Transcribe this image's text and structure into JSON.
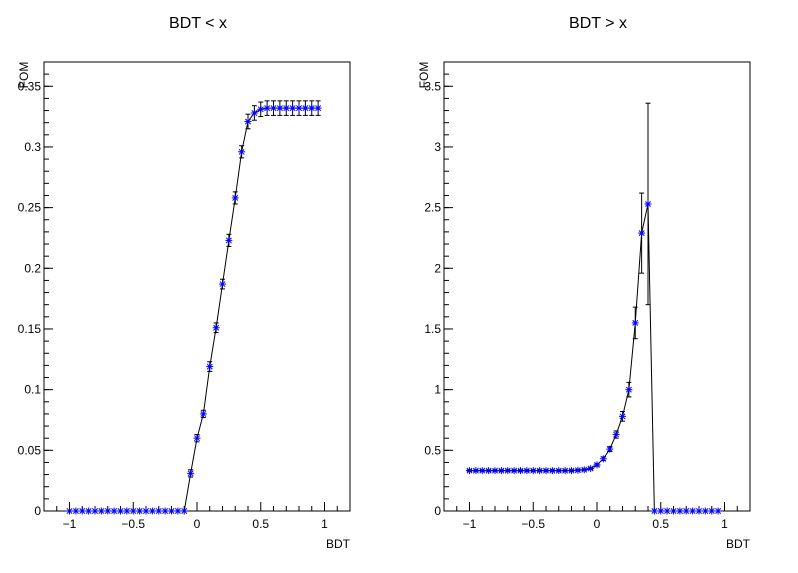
{
  "chart_data": [
    {
      "type": "scatter",
      "title": "BDT < x",
      "xlabel": "BDT",
      "ylabel": "FOM",
      "xlim": [
        -1.2,
        1.2
      ],
      "ylim": [
        0,
        0.37
      ],
      "x_ticks": [
        -1,
        -0.5,
        0,
        0.5,
        1
      ],
      "x_tick_labels": [
        "−1",
        "−0.5",
        "0",
        "0.5",
        "1"
      ],
      "y_ticks": [
        0,
        0.05,
        0.1,
        0.15,
        0.2,
        0.25,
        0.3,
        0.35
      ],
      "y_tick_labels": [
        "0",
        "0.05",
        "0.1",
        "0.15",
        "0.2",
        "0.25",
        "0.3",
        "0.35"
      ],
      "grid": false,
      "marker_color": "#0000ff",
      "line_color": "#000000",
      "series": [
        {
          "x": [
            -1,
            -0.95,
            -0.9,
            -0.85,
            -0.8,
            -0.75,
            -0.7,
            -0.65,
            -0.6,
            -0.55,
            -0.5,
            -0.45,
            -0.4,
            -0.35,
            -0.3,
            -0.25,
            -0.2,
            -0.15,
            -0.1,
            -0.05,
            0,
            0.05,
            0.1,
            0.15,
            0.2,
            0.25,
            0.3,
            0.35,
            0.4,
            0.45,
            0.5,
            0.55,
            0.6,
            0.65,
            0.7,
            0.75,
            0.8,
            0.85,
            0.9,
            0.95
          ],
          "y": [
            0,
            0,
            0,
            0,
            0,
            0,
            0,
            0,
            0,
            0,
            0,
            0,
            0,
            0,
            0,
            0,
            0,
            0,
            0,
            0.031,
            0.06,
            0.08,
            0.119,
            0.151,
            0.187,
            0.223,
            0.258,
            0.296,
            0.321,
            0.328,
            0.331,
            0.332,
            0.332,
            0.332,
            0.332,
            0.332,
            0.332,
            0.332,
            0.332,
            0.332
          ],
          "yerr": [
            0,
            0,
            0,
            0,
            0,
            0,
            0,
            0,
            0,
            0,
            0,
            0,
            0,
            0,
            0,
            0,
            0,
            0,
            0,
            0.003,
            0.003,
            0.003,
            0.004,
            0.004,
            0.004,
            0.005,
            0.005,
            0.005,
            0.006,
            0.006,
            0.006,
            0.006,
            0.006,
            0.006,
            0.006,
            0.006,
            0.006,
            0.006,
            0.006,
            0.006
          ]
        }
      ]
    },
    {
      "type": "scatter",
      "title": "BDT > x",
      "xlabel": "BDT",
      "ylabel": "FOM",
      "xlim": [
        -1.2,
        1.2
      ],
      "ylim": [
        0,
        3.7
      ],
      "x_ticks": [
        -1,
        -0.5,
        0,
        0.5,
        1
      ],
      "x_tick_labels": [
        "−1",
        "−0.5",
        "0",
        "0.5",
        "1"
      ],
      "y_ticks": [
        0,
        0.5,
        1,
        1.5,
        2,
        2.5,
        3,
        3.5
      ],
      "y_tick_labels": [
        "0",
        "0.5",
        "1",
        "1.5",
        "2",
        "2.5",
        "3",
        "3.5"
      ],
      "grid": false,
      "marker_color": "#0000ff",
      "line_color": "#000000",
      "series": [
        {
          "x": [
            -1,
            -0.95,
            -0.9,
            -0.85,
            -0.8,
            -0.75,
            -0.7,
            -0.65,
            -0.6,
            -0.55,
            -0.5,
            -0.45,
            -0.4,
            -0.35,
            -0.3,
            -0.25,
            -0.2,
            -0.15,
            -0.1,
            -0.05,
            0,
            0.05,
            0.1,
            0.15,
            0.2,
            0.25,
            0.3,
            0.35,
            0.4,
            0.45,
            0.5,
            0.55,
            0.6,
            0.65,
            0.7,
            0.75,
            0.8,
            0.85,
            0.9,
            0.95
          ],
          "y": [
            0.333,
            0.333,
            0.333,
            0.333,
            0.333,
            0.333,
            0.333,
            0.333,
            0.333,
            0.333,
            0.333,
            0.333,
            0.333,
            0.333,
            0.333,
            0.333,
            0.333,
            0.336,
            0.34,
            0.35,
            0.38,
            0.43,
            0.51,
            0.63,
            0.78,
            1.0,
            1.55,
            2.29,
            2.53,
            0,
            0,
            0,
            0,
            0,
            0,
            0,
            0,
            0,
            0,
            0
          ],
          "yerr": [
            0.006,
            0.006,
            0.006,
            0.006,
            0.006,
            0.006,
            0.006,
            0.006,
            0.006,
            0.006,
            0.006,
            0.006,
            0.006,
            0.006,
            0.006,
            0.006,
            0.006,
            0.007,
            0.007,
            0.008,
            0.01,
            0.015,
            0.02,
            0.03,
            0.04,
            0.06,
            0.13,
            0.33,
            0.83,
            0,
            0,
            0,
            0,
            0,
            0,
            0,
            0,
            0,
            0,
            0
          ]
        }
      ]
    }
  ]
}
